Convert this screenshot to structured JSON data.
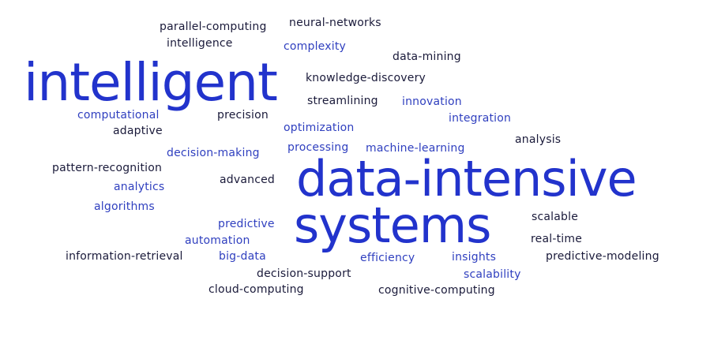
{
  "colors": {
    "dark": "#1a1a3a",
    "blue": "#2f3fbf",
    "big": "#2233cc"
  },
  "words": [
    {
      "text": "parallel-computing",
      "tone": "dark"
    },
    {
      "text": "neural-networks",
      "tone": "dark"
    },
    {
      "text": "intelligence",
      "tone": "dark"
    },
    {
      "text": "complexity",
      "tone": "blue"
    },
    {
      "text": "data-mining",
      "tone": "dark"
    },
    {
      "text": "intelligent",
      "tone": "big"
    },
    {
      "text": "knowledge-discovery",
      "tone": "dark"
    },
    {
      "text": "streamlining",
      "tone": "dark"
    },
    {
      "text": "innovation",
      "tone": "blue"
    },
    {
      "text": "computational",
      "tone": "blue"
    },
    {
      "text": "precision",
      "tone": "dark"
    },
    {
      "text": "integration",
      "tone": "blue"
    },
    {
      "text": "adaptive",
      "tone": "dark"
    },
    {
      "text": "optimization",
      "tone": "blue"
    },
    {
      "text": "analysis",
      "tone": "dark"
    },
    {
      "text": "decision-making",
      "tone": "blue"
    },
    {
      "text": "processing",
      "tone": "blue"
    },
    {
      "text": "machine-learning",
      "tone": "blue"
    },
    {
      "text": "pattern-recognition",
      "tone": "dark"
    },
    {
      "text": "data-intensive",
      "tone": "big"
    },
    {
      "text": "advanced",
      "tone": "dark"
    },
    {
      "text": "analytics",
      "tone": "blue"
    },
    {
      "text": "algorithms",
      "tone": "blue"
    },
    {
      "text": "systems",
      "tone": "big"
    },
    {
      "text": "scalable",
      "tone": "dark"
    },
    {
      "text": "predictive",
      "tone": "blue"
    },
    {
      "text": "automation",
      "tone": "blue"
    },
    {
      "text": "real-time",
      "tone": "dark"
    },
    {
      "text": "information-retrieval",
      "tone": "dark"
    },
    {
      "text": "big-data",
      "tone": "blue"
    },
    {
      "text": "efficiency",
      "tone": "blue"
    },
    {
      "text": "insights",
      "tone": "blue"
    },
    {
      "text": "predictive-modeling",
      "tone": "dark"
    },
    {
      "text": "decision-support",
      "tone": "dark"
    },
    {
      "text": "scalability",
      "tone": "blue"
    },
    {
      "text": "cloud-computing",
      "tone": "dark"
    },
    {
      "text": "cognitive-computing",
      "tone": "dark"
    }
  ]
}
